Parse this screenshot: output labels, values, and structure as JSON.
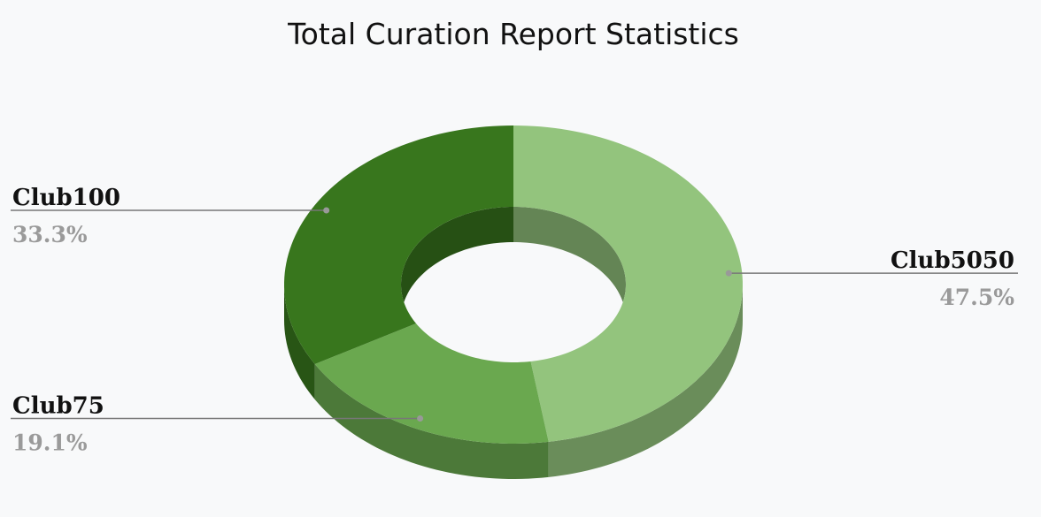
{
  "chart_data": {
    "type": "pie",
    "style": "3d-donut",
    "title": "Total Curation Report Statistics",
    "categories": [
      "Club5050",
      "Club75",
      "Club100"
    ],
    "values": [
      47.5,
      19.1,
      33.3
    ],
    "value_labels": [
      "47.5%",
      "19.1%",
      "33.3%"
    ],
    "colors": [
      "#93c47d",
      "#6aa84f",
      "#38761d"
    ],
    "legend": "labels-outside"
  }
}
